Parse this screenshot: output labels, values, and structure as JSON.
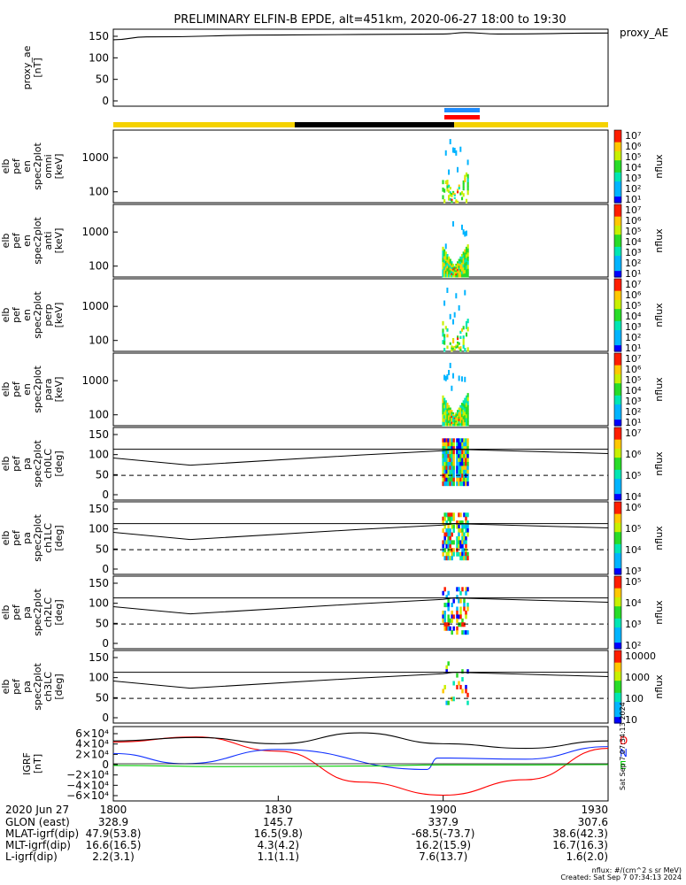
{
  "title": "PRELIMINARY ELFIN-B EPDE, alt=451km, 2020-06-27 18:00 to 19:30",
  "proxy_ae_label": "proxy_AE",
  "colors": {
    "science_zone_yellow": "#f5d200",
    "science_zone_black": "#000000",
    "blue_bar": "#1e8cff",
    "red_bar": "#ff0000",
    "field_E": "#00cc00",
    "field_N": "#1030ff",
    "field_D": "#ff0000",
    "line_black": "#000000"
  },
  "chart_data": [
    {
      "type": "line",
      "ylabel": "proxy_ae\n[nT]",
      "ylim": [
        0,
        160
      ],
      "yticks": [
        "150",
        "100",
        "50",
        "0"
      ],
      "series": [
        {
          "name": "proxy_AE",
          "x_minutes": [
            0,
            6,
            30,
            60,
            64,
            70,
            90
          ],
          "values": [
            138,
            144,
            148,
            150,
            153,
            150,
            152
          ]
        }
      ]
    },
    {
      "type": "heatmap",
      "ylabel": "elb\npef\nen\nspec2plot\nomni\n[keV]",
      "yticks": [
        "1000",
        "100"
      ],
      "colorbar_ticks": [
        "10^7",
        "10^6",
        "10^5",
        "10^4",
        "10^3",
        "10^2",
        "10^1"
      ],
      "colorbar_label": "nflux"
    },
    {
      "type": "heatmap",
      "ylabel": "elb\npef\nen\nspec2plot\nanti\n[keV]",
      "yticks": [
        "1000",
        "100"
      ],
      "colorbar_ticks": [
        "10^7",
        "10^6",
        "10^5",
        "10^4",
        "10^3",
        "10^2",
        "10^1"
      ],
      "colorbar_label": "nflux"
    },
    {
      "type": "heatmap",
      "ylabel": "elb\npef\nen\nspec2plot\nperp\n[keV]",
      "yticks": [
        "1000",
        "100"
      ],
      "colorbar_ticks": [
        "10^7",
        "10^6",
        "10^5",
        "10^4",
        "10^3",
        "10^2",
        "10^1"
      ],
      "colorbar_label": "nflux"
    },
    {
      "type": "heatmap",
      "ylabel": "elb\npef\nen\nspec2plot\npara\n[keV]",
      "yticks": [
        "1000",
        "100"
      ],
      "colorbar_ticks": [
        "10^7",
        "10^6",
        "10^5",
        "10^4",
        "10^3",
        "10^2",
        "10^1"
      ],
      "colorbar_label": "nflux"
    },
    {
      "type": "heatmap",
      "ylabel": "elb\npef\npa\nspec2plot\nch0LC\n[deg]",
      "yticks": [
        "150",
        "100",
        "50",
        "0"
      ],
      "colorbar_ticks": [
        "10^7",
        "10^6",
        "10^5",
        "10^4"
      ],
      "colorbar_label": "nflux"
    },
    {
      "type": "heatmap",
      "ylabel": "elb\npef\npa\nspec2plot\nch1LC\n[deg]",
      "yticks": [
        "150",
        "100",
        "50",
        "0"
      ],
      "colorbar_ticks": [
        "10^6",
        "10^5",
        "10^4",
        "10^3"
      ],
      "colorbar_label": "nflux"
    },
    {
      "type": "heatmap",
      "ylabel": "elb\npef\npa\nspec2plot\nch2LC\n[deg]",
      "yticks": [
        "150",
        "100",
        "50",
        "0"
      ],
      "colorbar_ticks": [
        "10^5",
        "10^4",
        "10^3",
        "10^2"
      ],
      "colorbar_label": "nflux"
    },
    {
      "type": "heatmap",
      "ylabel": "elb\npef\npa\nspec2plot\nch3LC\n[deg]",
      "yticks": [
        "150",
        "100",
        "50",
        "0"
      ],
      "colorbar_ticks": [
        "10000",
        "1000",
        "100",
        "10"
      ],
      "colorbar_label": "nflux"
    },
    {
      "type": "line",
      "ylabel": "IGRF\n[nT]",
      "ylim": [
        -65000,
        65000
      ],
      "yticks": [
        "6×10⁴",
        "4×10⁴",
        "2×10⁴",
        "0",
        "−2×10⁴",
        "−4×10⁴",
        "−6×10⁴"
      ],
      "legend": [
        "D",
        "N",
        "E"
      ],
      "series": [
        {
          "name": "D",
          "x_minutes": [
            0,
            15,
            30,
            45,
            60,
            75,
            90
          ],
          "values": [
            38000,
            47000,
            22000,
            -32000,
            -55000,
            -28000,
            27000
          ]
        },
        {
          "name": "N",
          "x_minutes": [
            0,
            13,
            30,
            57,
            59,
            75,
            90
          ],
          "values": [
            18000,
            0,
            25000,
            -10000,
            10000,
            8000,
            30000
          ]
        },
        {
          "name": "E",
          "x_minutes": [
            0,
            20,
            45,
            60,
            75,
            90
          ],
          "values": [
            -3000,
            -5000,
            -4000,
            -2000,
            -2000,
            -1500
          ]
        },
        {
          "name": "|B|",
          "x_minutes": [
            0,
            15,
            30,
            45,
            60,
            75,
            90
          ],
          "values": [
            40000,
            46000,
            35000,
            54000,
            35000,
            27000,
            40000
          ]
        }
      ]
    }
  ],
  "xaxis": {
    "row_labels": [
      "2020 Jun 27",
      "GLON (east)",
      "MLAT-igrf(dip)",
      "MLT-igrf(dip)",
      "L-igrf(dip)"
    ],
    "columns": [
      {
        "values": [
          "1800",
          "328.9",
          "47.9(53.8)",
          "16.6(16.5)",
          "2.2(3.1)"
        ]
      },
      {
        "values": [
          "1830",
          "145.7",
          "16.5(9.8)",
          "4.3(4.2)",
          "1.1(1.1)"
        ]
      },
      {
        "values": [
          "1900",
          "337.9",
          "-68.5(-73.7)",
          "16.2(15.9)",
          "7.6(13.7)"
        ]
      },
      {
        "values": [
          "1930",
          "307.6",
          "38.6(42.3)",
          "16.7(16.3)",
          "1.6(2.0)"
        ]
      }
    ]
  },
  "footer": {
    "units": "nflux: #/(cm^2 s sr MeV)",
    "created": "Created: Sat Sep  7 07:34:13 2024",
    "side_stamp": "Sat Sep  7 07:34:13 2024"
  }
}
